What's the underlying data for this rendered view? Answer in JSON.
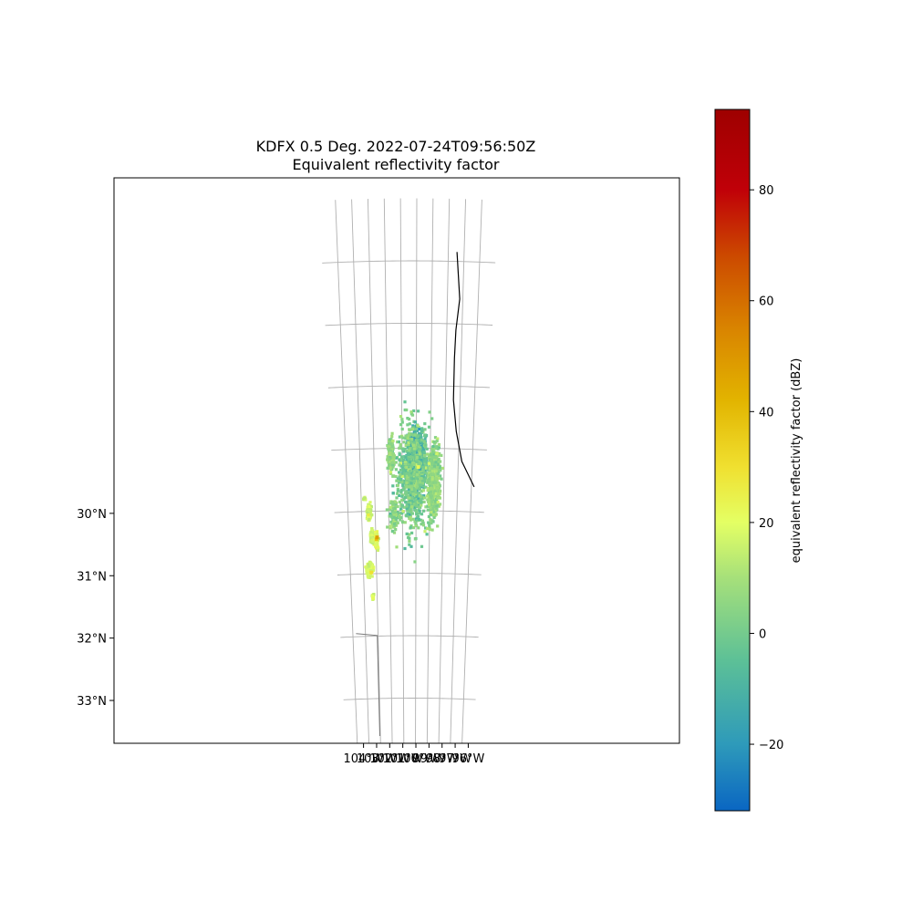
{
  "chart_data": {
    "type": "heatmap",
    "title_line1": "KDFX 0.5 Deg. 2022-07-24T09:56:50Z",
    "title_line2": "Equivalent reflectivity factor",
    "map_extent": {
      "lon": [
        -104.75,
        -95.8
      ],
      "lat": [
        28.6,
        33.6
      ]
    },
    "x_ticks": [
      {
        "value": -104,
        "label": "104°W"
      },
      {
        "value": -103,
        "label": "103°W"
      },
      {
        "value": -102,
        "label": "102°W"
      },
      {
        "value": -101,
        "label": "101°W"
      },
      {
        "value": -100,
        "label": "100°W"
      },
      {
        "value": -99,
        "label": "99°W"
      },
      {
        "value": -98,
        "label": "98°W"
      },
      {
        "value": -97,
        "label": "97°W"
      },
      {
        "value": -96,
        "label": "96°W"
      }
    ],
    "y_ticks": [
      {
        "value": 33,
        "label": "33°N"
      },
      {
        "value": 32,
        "label": "32°N"
      },
      {
        "value": 31,
        "label": "31°N"
      },
      {
        "value": 30,
        "label": "30°N"
      }
    ],
    "grid": true,
    "colorbar": {
      "label": "equivalent reflectivity factor (dBZ)",
      "range": [
        -32,
        94.5
      ],
      "ticks": [
        {
          "value": -20,
          "label": "−20"
        },
        {
          "value": 0,
          "label": "0"
        },
        {
          "value": 20,
          "label": "20"
        },
        {
          "value": 40,
          "label": "40"
        },
        {
          "value": 60,
          "label": "60"
        },
        {
          "value": 80,
          "label": "80"
        }
      ],
      "stops": [
        {
          "value": -32,
          "color": "#0a66c2"
        },
        {
          "value": -20,
          "color": "#2e9aba"
        },
        {
          "value": -5,
          "color": "#5cc097"
        },
        {
          "value": 10,
          "color": "#a6e07a"
        },
        {
          "value": 20,
          "color": "#e4ff64"
        },
        {
          "value": 30,
          "color": "#f0e030"
        },
        {
          "value": 42,
          "color": "#e2b400"
        },
        {
          "value": 55,
          "color": "#d98400"
        },
        {
          "value": 68,
          "color": "#cc4a00"
        },
        {
          "value": 80,
          "color": "#c00008"
        },
        {
          "value": 94.5,
          "color": "#9e0000"
        }
      ]
    },
    "radar_site": {
      "lon": -100.28,
      "lat": 29.27
    },
    "echo_clusters": [
      {
        "lon": -100.05,
        "lat": 29.25,
        "spread_lon": 0.55,
        "spread_lat": 0.42,
        "count": 1400,
        "dbz_mean": -8,
        "dbz_sd": 6
      },
      {
        "lon": -100.3,
        "lat": 29.45,
        "spread_lon": 1.1,
        "spread_lat": 0.85,
        "count": 650,
        "dbz_mean": 2,
        "dbz_sd": 5
      },
      {
        "lon": -98.75,
        "lat": 29.55,
        "spread_lon": 0.42,
        "spread_lat": 0.55,
        "count": 700,
        "dbz_mean": 5,
        "dbz_sd": 4
      },
      {
        "lon": -101.8,
        "lat": 29.1,
        "spread_lon": 0.25,
        "spread_lat": 0.25,
        "count": 160,
        "dbz_mean": 6,
        "dbz_sd": 4
      },
      {
        "lon": -101.6,
        "lat": 30.05,
        "spread_lon": 0.35,
        "spread_lat": 0.25,
        "count": 90,
        "dbz_mean": 5,
        "dbz_sd": 4
      },
      {
        "lon": -103.52,
        "lat": 30.93,
        "spread_lon": 0.22,
        "spread_lat": 0.09,
        "count": 160,
        "dbz_mean": 18,
        "dbz_sd": 3
      },
      {
        "lon": -103.32,
        "lat": 31.37,
        "spread_lon": 0.06,
        "spread_lat": 0.04,
        "count": 30,
        "dbz_mean": 18,
        "dbz_sd": 3
      },
      {
        "lon": -103.0,
        "lat": 30.46,
        "spread_lon": 0.15,
        "spread_lat": 0.13,
        "count": 170,
        "dbz_mean": 20,
        "dbz_sd": 4
      },
      {
        "lon": -103.3,
        "lat": 30.42,
        "spread_lon": 0.1,
        "spread_lat": 0.1,
        "count": 70,
        "dbz_mean": 17,
        "dbz_sd": 3
      },
      {
        "lon": -103.45,
        "lat": 30.02,
        "spread_lon": 0.15,
        "spread_lat": 0.12,
        "count": 130,
        "dbz_mean": 17,
        "dbz_sd": 3
      },
      {
        "lon": -103.75,
        "lat": 29.8,
        "spread_lon": 0.07,
        "spread_lat": 0.03,
        "count": 12,
        "dbz_mean": 16,
        "dbz_sd": 3
      }
    ],
    "hot_spots": [
      {
        "lon": -102.95,
        "lat": 30.45,
        "dbz": 38
      },
      {
        "lon": -102.9,
        "lat": 30.42,
        "dbz": 48
      },
      {
        "lon": -103.4,
        "lat": 30.98,
        "dbz": 30
      },
      {
        "lon": -99.85,
        "lat": 29.3,
        "dbz": 22
      }
    ],
    "coastline": [
      [
        -95.8,
        29.6
      ],
      [
        -96.75,
        29.2
      ],
      [
        -97.2,
        28.72
      ],
      [
        -97.45,
        28.22
      ],
      [
        -97.45,
        27.55
      ],
      [
        -97.4,
        27.1
      ],
      [
        -97.2,
        26.6
      ],
      [
        -97.45,
        25.85
      ]
    ],
    "state_border": [
      [
        -104.75,
        31.95
      ],
      [
        -103.06,
        31.99
      ],
      [
        -103.05,
        33.6
      ]
    ]
  }
}
